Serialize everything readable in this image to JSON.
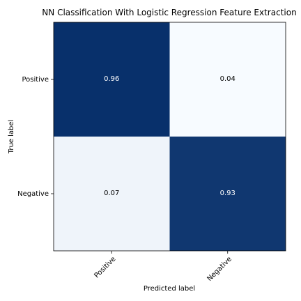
{
  "chart_data": {
    "type": "heatmap",
    "title": "NN Classification With Logistic Regression Feature Extraction",
    "xlabel": "Predicted label",
    "ylabel": "True label",
    "x_categories": [
      "Positive",
      "Negative"
    ],
    "y_categories": [
      "Positive",
      "Negative"
    ],
    "values": [
      [
        0.96,
        0.04
      ],
      [
        0.07,
        0.93
      ]
    ],
    "value_labels": [
      [
        "0.96",
        "0.04"
      ],
      [
        "0.07",
        "0.93"
      ]
    ],
    "colormap": "Blues",
    "colors": {
      "high": "#08306b",
      "low": "#f7fbff",
      "text_on_dark": "#ffffff",
      "text_on_light": "#000000"
    },
    "grid": false,
    "legend": "none"
  }
}
